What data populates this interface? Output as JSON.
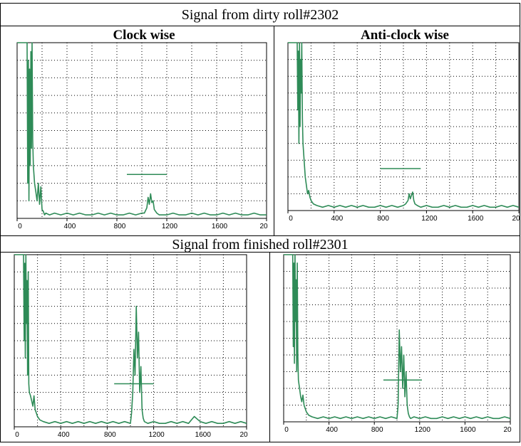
{
  "sections": [
    {
      "title": "Signal from dirty roll#2302"
    },
    {
      "title": "Signal from finished roll#2301"
    }
  ],
  "columns": [
    "Clock wise",
    "Anti-clock wise"
  ],
  "colors": {
    "signal": "#2e8b57",
    "grid": "#000000",
    "border": "#000000"
  },
  "chart_data": [
    {
      "type": "line",
      "section": "dirty",
      "direction": "Clock wise",
      "xlim": [
        0,
        2000
      ],
      "ylim": [
        0,
        100
      ],
      "x_ticks": [
        "0",
        "400",
        "800",
        "1200",
        "1600",
        "20"
      ],
      "grid": true,
      "annotation_line": {
        "x": [
          880,
          1200
        ],
        "y": 25
      },
      "x": [
        0,
        20,
        40,
        60,
        80,
        85,
        90,
        95,
        100,
        105,
        110,
        115,
        120,
        125,
        130,
        140,
        150,
        160,
        170,
        180,
        190,
        200,
        210,
        220,
        230,
        260,
        300,
        350,
        400,
        450,
        500,
        550,
        600,
        650,
        700,
        750,
        800,
        850,
        900,
        950,
        1000,
        1020,
        1040,
        1050,
        1060,
        1070,
        1080,
        1090,
        1100,
        1120,
        1140,
        1200,
        1250,
        1300,
        1350,
        1400,
        1450,
        1500,
        1550,
        1600,
        1650,
        1700,
        1750,
        1800,
        1850,
        1900,
        1950,
        2000
      ],
      "y": [
        100,
        100,
        100,
        100,
        100,
        20,
        90,
        10,
        85,
        30,
        95,
        40,
        100,
        45,
        30,
        20,
        15,
        10,
        20,
        8,
        18,
        5,
        4,
        2,
        3,
        2,
        3,
        2,
        3,
        2,
        3,
        2,
        2,
        3,
        2,
        3,
        2,
        2,
        3,
        2,
        3,
        3,
        6,
        12,
        8,
        14,
        9,
        10,
        5,
        3,
        2,
        2,
        3,
        2,
        2,
        3,
        2,
        3,
        2,
        2,
        3,
        2,
        3,
        2,
        2,
        3,
        2,
        2
      ]
    },
    {
      "type": "line",
      "section": "dirty",
      "direction": "Anti-clock wise",
      "xlim": [
        0,
        2000
      ],
      "ylim": [
        0,
        100
      ],
      "x_ticks": [
        "0",
        "400",
        "800",
        "1200",
        "1600",
        "20"
      ],
      "grid": true,
      "annotation_line": {
        "x": [
          800,
          1150
        ],
        "y": 25
      },
      "x": [
        0,
        20,
        40,
        60,
        80,
        85,
        90,
        95,
        100,
        105,
        110,
        115,
        120,
        125,
        130,
        140,
        150,
        160,
        170,
        180,
        190,
        200,
        220,
        250,
        300,
        350,
        400,
        450,
        500,
        550,
        600,
        650,
        700,
        750,
        800,
        850,
        900,
        950,
        1000,
        1020,
        1040,
        1050,
        1060,
        1070,
        1080,
        1090,
        1100,
        1120,
        1150,
        1200,
        1250,
        1300,
        1350,
        1400,
        1450,
        1500,
        1550,
        1600,
        1650,
        1700,
        1750,
        1800,
        1850,
        1900,
        1950,
        2000
      ],
      "y": [
        100,
        100,
        100,
        100,
        100,
        60,
        95,
        40,
        100,
        50,
        90,
        70,
        100,
        55,
        40,
        30,
        20,
        15,
        10,
        12,
        8,
        6,
        4,
        3,
        2,
        3,
        2,
        3,
        2,
        3,
        2,
        3,
        2,
        2,
        3,
        2,
        3,
        2,
        3,
        4,
        6,
        10,
        7,
        9,
        11,
        6,
        4,
        3,
        2,
        3,
        2,
        2,
        3,
        2,
        3,
        2,
        2,
        3,
        2,
        3,
        2,
        2,
        3,
        2,
        3,
        2
      ]
    },
    {
      "type": "line",
      "section": "finished",
      "direction": "Clock wise",
      "xlim": [
        0,
        2000
      ],
      "ylim": [
        0,
        100
      ],
      "x_ticks": [
        "0",
        "400",
        "800",
        "1200",
        "1600",
        "20"
      ],
      "grid": true,
      "annotation_line": {
        "x": [
          860,
          1200
        ],
        "y": 25
      },
      "x": [
        0,
        20,
        40,
        60,
        80,
        85,
        90,
        95,
        100,
        105,
        110,
        115,
        120,
        125,
        130,
        140,
        150,
        160,
        170,
        180,
        190,
        200,
        220,
        250,
        300,
        350,
        400,
        450,
        500,
        550,
        600,
        650,
        700,
        750,
        800,
        850,
        900,
        950,
        1000,
        1010,
        1020,
        1030,
        1040,
        1050,
        1060,
        1070,
        1080,
        1090,
        1100,
        1110,
        1120,
        1150,
        1200,
        1250,
        1300,
        1350,
        1400,
        1450,
        1500,
        1550,
        1600,
        1650,
        1700,
        1750,
        1800,
        1850,
        1900,
        1950,
        2000
      ],
      "y": [
        100,
        100,
        100,
        100,
        100,
        50,
        95,
        40,
        100,
        60,
        85,
        30,
        90,
        25,
        20,
        18,
        15,
        12,
        18,
        10,
        8,
        6,
        4,
        3,
        2,
        3,
        2,
        3,
        2,
        3,
        2,
        3,
        2,
        3,
        2,
        3,
        2,
        3,
        2,
        8,
        20,
        45,
        30,
        70,
        40,
        55,
        20,
        35,
        10,
        5,
        3,
        2,
        3,
        2,
        2,
        3,
        2,
        3,
        2,
        6,
        3,
        2,
        3,
        2,
        2,
        3,
        2,
        3,
        2
      ]
    },
    {
      "type": "line",
      "section": "finished",
      "direction": "Anti-clock wise",
      "xlim": [
        0,
        2000
      ],
      "ylim": [
        0,
        100
      ],
      "x_ticks": [
        "0",
        "400",
        "800",
        "1200",
        "1600",
        "20"
      ],
      "grid": true,
      "annotation_line": {
        "x": [
          880,
          1220
        ],
        "y": 25
      },
      "x": [
        0,
        20,
        40,
        60,
        80,
        85,
        90,
        95,
        100,
        105,
        110,
        115,
        120,
        125,
        130,
        140,
        150,
        160,
        170,
        180,
        190,
        200,
        220,
        250,
        300,
        350,
        400,
        450,
        500,
        550,
        600,
        650,
        700,
        750,
        800,
        850,
        900,
        950,
        1000,
        1010,
        1020,
        1030,
        1040,
        1050,
        1060,
        1070,
        1080,
        1090,
        1100,
        1110,
        1120,
        1150,
        1200,
        1250,
        1300,
        1350,
        1400,
        1450,
        1500,
        1550,
        1600,
        1650,
        1700,
        1750,
        1800,
        1850,
        1900,
        1950,
        2000
      ],
      "y": [
        100,
        100,
        100,
        100,
        100,
        45,
        95,
        35,
        100,
        60,
        85,
        30,
        95,
        40,
        25,
        20,
        15,
        12,
        16,
        10,
        8,
        6,
        4,
        3,
        2,
        3,
        2,
        3,
        2,
        3,
        2,
        3,
        2,
        3,
        2,
        3,
        2,
        3,
        2,
        10,
        55,
        30,
        45,
        20,
        40,
        15,
        30,
        10,
        5,
        3,
        2,
        3,
        2,
        3,
        2,
        2,
        3,
        2,
        3,
        2,
        3,
        2,
        3,
        2,
        3,
        2,
        2,
        3,
        2
      ]
    }
  ]
}
